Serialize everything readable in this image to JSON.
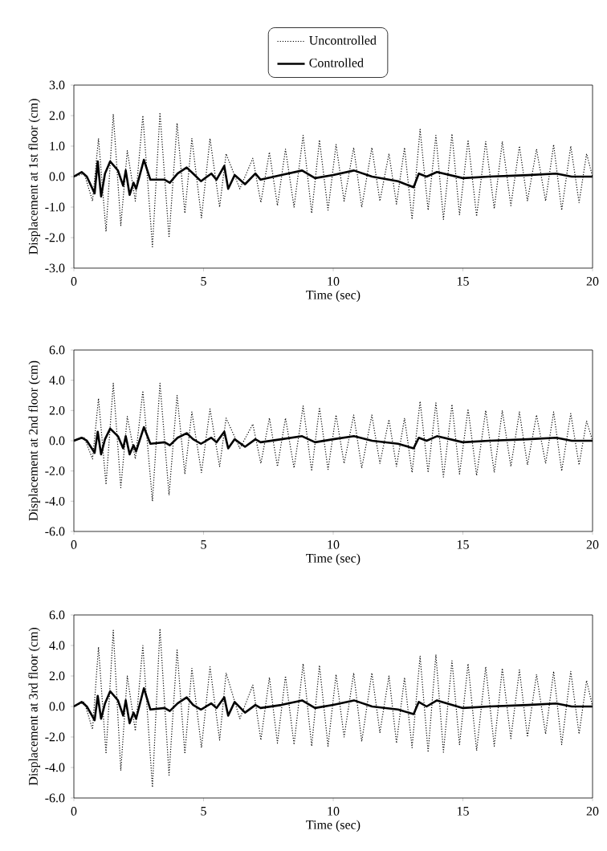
{
  "chart_data": [
    {
      "type": "line",
      "xlabel": "Time (sec)",
      "ylabel": "Displacement at 1st floor (cm)",
      "xlim": [
        0,
        20
      ],
      "xticks": [
        0,
        5,
        10,
        15,
        20
      ],
      "ylim": [
        -3,
        3
      ],
      "yticks": [
        {
          "value": -3,
          "label": "-3.0"
        },
        {
          "value": -2,
          "label": "-2.0"
        },
        {
          "value": -1,
          "label": "-1.0"
        },
        {
          "value": 0,
          "label": "0.0"
        },
        {
          "value": 1,
          "label": "1.0"
        },
        {
          "value": 2,
          "label": "2.0"
        },
        {
          "value": 3,
          "label": "3.0"
        }
      ],
      "legend": "top",
      "grid": false,
      "series": [
        {
          "name": "Uncontrolled",
          "color": "#000000",
          "line_style": "dotted",
          "x": [
            0,
            0.4,
            0.72,
            0.95,
            1.24,
            1.52,
            1.81,
            2.06,
            2.37,
            2.66,
            3.03,
            3.32,
            3.67,
            3.98,
            4.28,
            4.55,
            4.92,
            5.25,
            5.62,
            5.87,
            6.4,
            6.9,
            7.21,
            7.54,
            7.85,
            8.16,
            8.49,
            8.84,
            9.17,
            9.47,
            9.8,
            10.11,
            10.42,
            10.79,
            11.1,
            11.49,
            11.8,
            12.15,
            12.44,
            12.75,
            13.04,
            13.35,
            13.66,
            13.96,
            14.25,
            14.58,
            14.87,
            15.2,
            15.53,
            15.88,
            16.21,
            16.52,
            16.85,
            17.18,
            17.49,
            17.84,
            18.19,
            18.5,
            18.81,
            19.16,
            19.48,
            19.77,
            20
          ],
          "values": [
            0,
            0.1,
            -0.8,
            1.25,
            -1.8,
            2.05,
            -1.6,
            0.85,
            -0.8,
            2.0,
            -2.3,
            2.1,
            -2.0,
            1.75,
            -1.2,
            1.25,
            -1.35,
            1.25,
            -1.0,
            0.75,
            -0.4,
            0.6,
            -0.85,
            0.8,
            -0.95,
            0.9,
            -1.0,
            1.35,
            -1.2,
            1.2,
            -1.1,
            1.05,
            -0.8,
            0.95,
            -1.0,
            0.95,
            -0.8,
            0.75,
            -0.9,
            0.95,
            -1.4,
            1.55,
            -1.1,
            1.35,
            -1.4,
            1.4,
            -1.25,
            1.2,
            -1.3,
            1.15,
            -1.05,
            1.15,
            -0.95,
            1.0,
            -0.8,
            0.9,
            -0.8,
            1.05,
            -1.1,
            1.0,
            -0.85,
            0.75,
            0
          ]
        },
        {
          "name": "Controlled",
          "color": "#000000",
          "line_style": "solid",
          "x": [
            0,
            0.3,
            0.5,
            0.8,
            0.92,
            1.05,
            1.2,
            1.4,
            1.7,
            1.9,
            2.0,
            2.15,
            2.3,
            2.4,
            2.7,
            2.95,
            3.5,
            3.7,
            4.0,
            4.35,
            4.6,
            4.9,
            5.3,
            5.5,
            5.8,
            5.95,
            6.2,
            6.6,
            7.0,
            7.2,
            8.0,
            8.8,
            9.3,
            10.0,
            10.8,
            11.5,
            12.5,
            13.1,
            13.3,
            13.6,
            14.0,
            15.0,
            16.0,
            17.5,
            18.6,
            19.2,
            20
          ],
          "values": [
            0,
            0.15,
            0,
            -0.55,
            0.5,
            -0.65,
            0.1,
            0.5,
            0.2,
            -0.3,
            0.2,
            -0.6,
            -0.2,
            -0.4,
            0.55,
            -0.1,
            -0.1,
            -0.2,
            0.1,
            0.3,
            0.1,
            -0.15,
            0.1,
            -0.1,
            0.35,
            -0.4,
            0.05,
            -0.25,
            0.1,
            -0.1,
            0.05,
            0.2,
            -0.05,
            0.05,
            0.2,
            0,
            -0.15,
            -0.35,
            0.1,
            0,
            0.15,
            -0.05,
            0,
            0.05,
            0.1,
            0,
            0
          ]
        }
      ]
    },
    {
      "type": "line",
      "xlabel": "Time (sec)",
      "ylabel": "Displacement at 2nd floor (cm)",
      "xlim": [
        0,
        20
      ],
      "xticks": [
        0,
        5,
        10,
        15,
        20
      ],
      "ylim": [
        -6,
        6
      ],
      "yticks": [
        {
          "value": -6,
          "label": "-6.0"
        },
        {
          "value": -4,
          "label": "-4.0"
        },
        {
          "value": -2,
          "label": "-2.0"
        },
        {
          "value": 0,
          "label": "0.0"
        },
        {
          "value": 2,
          "label": "2.0"
        },
        {
          "value": 4,
          "label": "4.0"
        },
        {
          "value": 6,
          "label": "6.0"
        }
      ],
      "grid": false,
      "series": [
        {
          "color": "#000000",
          "line_style": "dotted",
          "x": [
            0,
            0.4,
            0.72,
            0.95,
            1.24,
            1.52,
            1.81,
            2.06,
            2.37,
            2.66,
            3.03,
            3.32,
            3.67,
            3.98,
            4.28,
            4.55,
            4.92,
            5.25,
            5.62,
            5.87,
            6.4,
            6.9,
            7.21,
            7.54,
            7.85,
            8.16,
            8.49,
            8.84,
            9.17,
            9.47,
            9.8,
            10.11,
            10.42,
            10.79,
            11.1,
            11.49,
            11.8,
            12.15,
            12.44,
            12.75,
            13.04,
            13.35,
            13.66,
            13.96,
            14.25,
            14.58,
            14.87,
            15.2,
            15.53,
            15.88,
            16.21,
            16.52,
            16.85,
            17.18,
            17.49,
            17.84,
            18.19,
            18.5,
            18.81,
            19.16,
            19.48,
            19.77,
            20
          ],
          "values": [
            0,
            0.2,
            -1.2,
            2.8,
            -2.9,
            3.8,
            -3.1,
            1.6,
            -1.2,
            3.3,
            -4.0,
            3.8,
            -3.6,
            3.0,
            -2.2,
            1.9,
            -2.1,
            2.1,
            -1.7,
            1.5,
            -0.5,
            1.1,
            -1.5,
            1.5,
            -1.7,
            1.5,
            -1.8,
            2.3,
            -2.0,
            2.2,
            -1.9,
            1.7,
            -1.5,
            1.7,
            -1.8,
            1.7,
            -1.5,
            1.4,
            -1.7,
            1.5,
            -2.1,
            2.6,
            -2.1,
            2.5,
            -2.4,
            2.4,
            -2.2,
            2.1,
            -2.3,
            2.0,
            -2.1,
            2.0,
            -1.7,
            1.9,
            -1.6,
            1.7,
            -1.5,
            1.9,
            -2.0,
            1.8,
            -1.6,
            1.3,
            0
          ]
        },
        {
          "color": "#000000",
          "line_style": "solid",
          "x": [
            0,
            0.3,
            0.5,
            0.8,
            0.92,
            1.05,
            1.2,
            1.4,
            1.7,
            1.9,
            2.0,
            2.15,
            2.3,
            2.4,
            2.7,
            2.95,
            3.5,
            3.7,
            4.0,
            4.35,
            4.6,
            4.9,
            5.3,
            5.5,
            5.8,
            5.95,
            6.2,
            6.6,
            7.0,
            7.2,
            8.0,
            8.8,
            9.3,
            10.0,
            10.8,
            11.5,
            12.5,
            13.1,
            13.3,
            13.6,
            14.0,
            15.0,
            16.0,
            17.5,
            18.6,
            19.2,
            20
          ],
          "values": [
            0,
            0.2,
            0,
            -0.8,
            0.6,
            -0.9,
            0.1,
            0.8,
            0.3,
            -0.5,
            0.3,
            -0.9,
            -0.3,
            -0.7,
            0.9,
            -0.2,
            -0.1,
            -0.3,
            0.2,
            0.5,
            0.1,
            -0.2,
            0.2,
            -0.1,
            0.6,
            -0.5,
            0.1,
            -0.4,
            0.1,
            -0.1,
            0.1,
            0.3,
            -0.1,
            0.1,
            0.3,
            0,
            -0.2,
            -0.5,
            0.2,
            0,
            0.3,
            -0.1,
            0,
            0.1,
            0.2,
            0,
            0
          ]
        }
      ]
    },
    {
      "type": "line",
      "xlabel": "Time (sec)",
      "ylabel": "Displacement at 3rd floor (cm)",
      "xlim": [
        0,
        20
      ],
      "xticks": [
        0,
        5,
        10,
        15,
        20
      ],
      "ylim": [
        -6,
        6
      ],
      "yticks": [
        {
          "value": -6,
          "label": "-6.0"
        },
        {
          "value": -4,
          "label": "-4.0"
        },
        {
          "value": -2,
          "label": "-2.0"
        },
        {
          "value": 0,
          "label": "0.0"
        },
        {
          "value": 2,
          "label": "2.0"
        },
        {
          "value": 4,
          "label": "4.0"
        },
        {
          "value": 6,
          "label": "6.0"
        }
      ],
      "grid": false,
      "series": [
        {
          "color": "#000000",
          "line_style": "dotted",
          "x": [
            0,
            0.4,
            0.72,
            0.95,
            1.24,
            1.52,
            1.81,
            2.06,
            2.37,
            2.66,
            3.03,
            3.32,
            3.67,
            3.98,
            4.28,
            4.55,
            4.92,
            5.25,
            5.62,
            5.87,
            6.4,
            6.9,
            7.21,
            7.54,
            7.85,
            8.16,
            8.49,
            8.84,
            9.17,
            9.47,
            9.8,
            10.11,
            10.42,
            10.79,
            11.1,
            11.49,
            11.8,
            12.15,
            12.44,
            12.75,
            13.04,
            13.35,
            13.66,
            13.96,
            14.25,
            14.58,
            14.87,
            15.2,
            15.53,
            15.88,
            16.21,
            16.52,
            16.85,
            17.18,
            17.49,
            17.84,
            18.19,
            18.5,
            18.81,
            19.16,
            19.48,
            19.77,
            20
          ],
          "values": [
            0,
            0.3,
            -1.5,
            3.9,
            -3.1,
            5.0,
            -4.2,
            2.0,
            -1.6,
            4.0,
            -5.3,
            5.1,
            -4.5,
            3.7,
            -3.1,
            2.5,
            -2.7,
            2.6,
            -2.2,
            2.2,
            -0.8,
            1.4,
            -2.2,
            1.9,
            -2.4,
            2.0,
            -2.5,
            2.8,
            -2.6,
            2.7,
            -2.6,
            2.1,
            -2.0,
            2.2,
            -2.3,
            2.2,
            -1.7,
            2.0,
            -2.4,
            1.9,
            -2.7,
            3.3,
            -3.0,
            3.4,
            -3.0,
            3.0,
            -2.5,
            2.8,
            -2.9,
            2.6,
            -2.6,
            2.5,
            -2.1,
            2.4,
            -2.0,
            2.1,
            -1.8,
            2.3,
            -2.5,
            2.3,
            -1.8,
            1.7,
            0
          ]
        },
        {
          "color": "#000000",
          "line_style": "solid",
          "x": [
            0,
            0.3,
            0.5,
            0.8,
            0.92,
            1.05,
            1.2,
            1.4,
            1.7,
            1.9,
            2.0,
            2.15,
            2.3,
            2.4,
            2.7,
            2.95,
            3.5,
            3.7,
            4.0,
            4.35,
            4.6,
            4.9,
            5.3,
            5.5,
            5.8,
            5.95,
            6.2,
            6.6,
            7.0,
            7.2,
            8.0,
            8.8,
            9.3,
            10.0,
            10.8,
            11.5,
            12.5,
            13.1,
            13.3,
            13.6,
            14.0,
            15.0,
            16.0,
            17.5,
            18.6,
            19.2,
            20
          ],
          "values": [
            0,
            0.3,
            0,
            -0.9,
            0.7,
            -0.8,
            0.2,
            1.0,
            0.4,
            -0.6,
            0.4,
            -1.1,
            -0.4,
            -0.8,
            1.2,
            -0.2,
            -0.1,
            -0.3,
            0.2,
            0.6,
            0.1,
            -0.2,
            0.2,
            -0.1,
            0.6,
            -0.6,
            0.3,
            -0.4,
            0.1,
            -0.1,
            0.1,
            0.4,
            -0.1,
            0.1,
            0.4,
            0,
            -0.2,
            -0.5,
            0.3,
            0,
            0.4,
            -0.1,
            0,
            0.1,
            0.2,
            0,
            0
          ]
        }
      ]
    }
  ]
}
